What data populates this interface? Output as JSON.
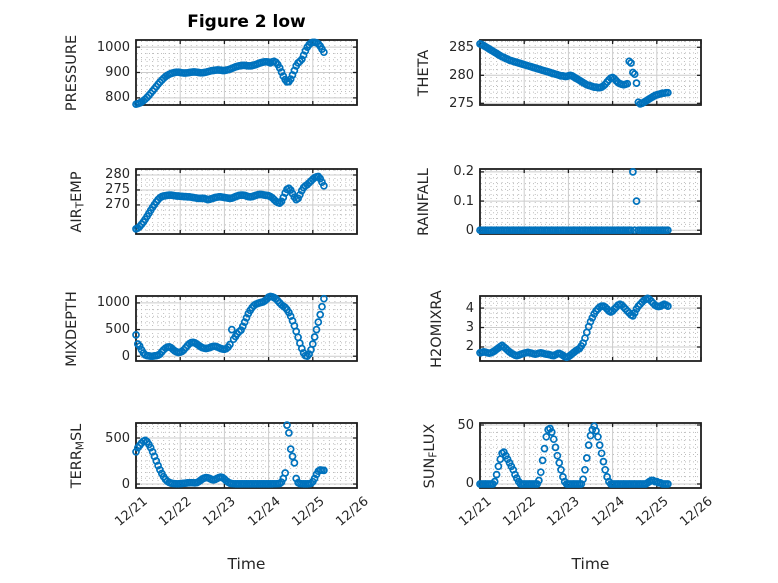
{
  "figure": {
    "title": "Figure 2 low"
  },
  "colors": {
    "marker": "#0072bd",
    "axes": "#1f1f1f",
    "text": "#262626",
    "grid_major": "#cccccc",
    "grid_minor": "#bdbdbd",
    "background": "#ffffff"
  },
  "time_axis": {
    "xlabel": "Time",
    "tick_labels": [
      "12/21",
      "12/22",
      "12/23",
      "12/24",
      "12/25",
      "12/26"
    ],
    "xlim_days": [
      0,
      5
    ],
    "x_start_day": 0,
    "x_step_days": 0.0416667,
    "x_minor_divisions_per_day": 8
  },
  "chart_data": [
    {
      "id": "pressure",
      "type": "scatter",
      "row": 0,
      "col": 0,
      "ylabel": "PRESSURE",
      "ylabel_parts": [
        {
          "text": "PRESSURE",
          "sub": false
        }
      ],
      "yticks": [
        800,
        900,
        1000
      ],
      "ytick_labels": [
        "800",
        "900",
        "1000"
      ],
      "ylim": [
        772,
        1028
      ],
      "y_minor_divisions": 4,
      "values": [
        775,
        777,
        780,
        784,
        789,
        795,
        802,
        810,
        818,
        827,
        836,
        845,
        854,
        862,
        870,
        877,
        884,
        889,
        893,
        896,
        898,
        900,
        901,
        901,
        900,
        899,
        898,
        898,
        899,
        900,
        901,
        902,
        902,
        901,
        900,
        899,
        899,
        900,
        901,
        903,
        905,
        907,
        908,
        909,
        910,
        910,
        909,
        908,
        908,
        909,
        911,
        913,
        916,
        919,
        922,
        924,
        926,
        927,
        928,
        928,
        927,
        926,
        926,
        927,
        929,
        931,
        934,
        937,
        939,
        941,
        942,
        942,
        941,
        938,
        942,
        944,
        940,
        931,
        918,
        902,
        886,
        872,
        863,
        864,
        874,
        890,
        908,
        926,
        938,
        944,
        952,
        968,
        985,
        1000,
        1010,
        1016,
        1019,
        1019,
        1017,
        1013,
        1004,
        992,
        980
      ]
    },
    {
      "id": "theta",
      "type": "scatter",
      "row": 0,
      "col": 1,
      "ylabel": "THETA",
      "ylabel_parts": [
        {
          "text": "THETA",
          "sub": false
        }
      ],
      "yticks": [
        275,
        280,
        285
      ],
      "ytick_labels": [
        "275",
        "280",
        "285"
      ],
      "ylim": [
        274.7,
        286.3
      ],
      "y_minor_divisions": 5,
      "values": [
        285.6,
        285.5,
        285.3,
        285.1,
        284.9,
        284.7,
        284.5,
        284.3,
        284.1,
        283.9,
        283.7,
        283.5,
        283.3,
        283.2,
        283.0,
        282.9,
        282.7,
        282.6,
        282.5,
        282.4,
        282.3,
        282.2,
        282.1,
        282.0,
        281.9,
        281.8,
        281.7,
        281.6,
        281.5,
        281.4,
        281.3,
        281.2,
        281.1,
        281.0,
        280.9,
        280.8,
        280.7,
        280.6,
        280.5,
        280.4,
        280.3,
        280.2,
        280.1,
        280.0,
        279.9,
        279.9,
        279.8,
        279.8,
        279.9,
        280.0,
        279.9,
        279.7,
        279.5,
        279.3,
        279.1,
        278.9,
        278.7,
        278.5,
        278.3,
        278.2,
        278.1,
        278.0,
        277.9,
        277.9,
        277.8,
        277.8,
        277.9,
        278.1,
        278.4,
        278.8,
        279.2,
        279.5,
        279.6,
        279.4,
        279.0,
        278.7,
        278.5,
        278.4,
        278.3,
        278.4,
        278.5,
        282.5,
        282.2,
        280.5,
        280.2,
        278.6,
        275.2,
        274.9,
        275.0,
        275.2,
        275.4,
        275.6,
        275.8,
        276.0,
        276.2,
        276.4,
        276.5,
        276.6,
        276.7,
        276.8,
        276.8,
        276.9,
        276.9
      ]
    },
    {
      "id": "air_temp",
      "type": "scatter",
      "row": 1,
      "col": 0,
      "ylabel": "AIR_TEMP",
      "ylabel_parts": [
        {
          "text": "AIR",
          "sub": false
        },
        {
          "text": "T",
          "sub": true
        },
        {
          "text": "EMP",
          "sub": false
        }
      ],
      "yticks": [
        270,
        275,
        280
      ],
      "ytick_labels": [
        "270",
        "275",
        "280"
      ],
      "ylim": [
        260.3,
        282.0
      ],
      "y_minor_divisions": 3,
      "values": [
        262.0,
        262.3,
        262.8,
        263.5,
        264.3,
        265.2,
        266.2,
        267.2,
        268.2,
        269.2,
        270.1,
        271.0,
        271.8,
        272.4,
        272.8,
        273.0,
        273.1,
        273.2,
        273.3,
        273.3,
        273.2,
        273.1,
        273.0,
        273.0,
        272.9,
        272.9,
        272.8,
        272.8,
        272.7,
        272.7,
        272.6,
        272.5,
        272.4,
        272.3,
        272.2,
        272.2,
        272.2,
        272.2,
        272.0,
        271.8,
        271.9,
        272.1,
        272.3,
        272.5,
        272.6,
        272.7,
        272.7,
        272.6,
        272.5,
        272.4,
        272.3,
        272.2,
        272.3,
        272.5,
        272.8,
        273.0,
        273.2,
        273.3,
        273.3,
        273.2,
        273.0,
        272.8,
        272.7,
        272.8,
        273.0,
        273.2,
        273.4,
        273.5,
        273.5,
        273.4,
        273.3,
        273.2,
        273.1,
        272.8,
        272.4,
        271.8,
        271.2,
        270.8,
        270.6,
        271.2,
        272.5,
        274.0,
        275.2,
        275.6,
        275.0,
        273.8,
        272.6,
        271.8,
        272.2,
        273.4,
        274.8,
        275.8,
        276.4,
        276.8,
        277.4,
        278.0,
        278.6,
        279.1,
        279.4,
        279.5,
        278.8,
        277.6,
        276.4
      ]
    },
    {
      "id": "rainfall",
      "type": "scatter",
      "row": 1,
      "col": 1,
      "ylabel": "RAINFALL",
      "ylabel_parts": [
        {
          "text": "RAINFALL",
          "sub": false
        }
      ],
      "yticks": [
        0,
        0.1,
        0.2
      ],
      "ytick_labels": [
        "0",
        "0.1",
        "0.2"
      ],
      "ylim": [
        -0.013,
        0.21
      ],
      "y_minor_divisions": 5,
      "values": [
        0,
        0,
        0,
        0,
        0,
        0,
        0,
        0,
        0,
        0,
        0,
        0,
        0,
        0,
        0,
        0,
        0,
        0,
        0,
        0,
        0,
        0,
        0,
        0,
        0,
        0,
        0,
        0,
        0,
        0,
        0,
        0,
        0,
        0,
        0,
        0,
        0,
        0,
        0,
        0,
        0,
        0,
        0,
        0,
        0,
        0,
        0,
        0,
        0,
        0,
        0,
        0,
        0,
        0,
        0,
        0,
        0,
        0,
        0,
        0,
        0,
        0,
        0,
        0,
        0,
        0,
        0,
        0,
        0,
        0,
        0,
        0,
        0,
        0,
        0,
        0,
        0,
        0,
        0,
        0,
        0,
        0,
        0,
        0.2,
        0,
        0.1,
        0,
        0,
        0,
        0,
        0,
        0,
        0,
        0,
        0,
        0,
        0,
        0,
        0,
        0,
        0,
        0,
        0
      ]
    },
    {
      "id": "mixdepth",
      "type": "scatter",
      "row": 2,
      "col": 0,
      "ylabel": "MIXDEPTH",
      "ylabel_parts": [
        {
          "text": "MIXDEPTH",
          "sub": false
        }
      ],
      "yticks": [
        0,
        500,
        1000
      ],
      "ytick_labels": [
        "0",
        "500",
        "1000"
      ],
      "ylim": [
        -90,
        1130
      ],
      "y_minor_divisions": 4,
      "values": [
        400,
        230,
        190,
        120,
        60,
        25,
        10,
        5,
        0,
        0,
        5,
        10,
        20,
        40,
        80,
        120,
        150,
        170,
        175,
        160,
        130,
        100,
        80,
        70,
        75,
        90,
        120,
        160,
        200,
        235,
        255,
        260,
        250,
        230,
        205,
        180,
        160,
        150,
        145,
        150,
        160,
        175,
        185,
        185,
        175,
        160,
        145,
        135,
        130,
        140,
        170,
        220,
        500,
        320,
        370,
        420,
        460,
        490,
        560,
        640,
        720,
        800,
        860,
        910,
        950,
        975,
        990,
        1000,
        1010,
        1020,
        1040,
        1070,
        1110,
        1120,
        1115,
        1100,
        1075,
        1040,
        1000,
        965,
        940,
        915,
        875,
        820,
        750,
        665,
        570,
        465,
        355,
        245,
        145,
        60,
        10,
        0,
        40,
        120,
        230,
        360,
        500,
        640,
        780,
        930,
        1080
      ]
    },
    {
      "id": "h2omixra",
      "type": "scatter",
      "row": 2,
      "col": 1,
      "ylabel": "H2OMIXRA",
      "ylabel_parts": [
        {
          "text": "H2OMIXRA",
          "sub": false
        }
      ],
      "yticks": [
        2,
        3,
        4
      ],
      "ytick_labels": [
        "2",
        "3",
        "4"
      ],
      "ylim": [
        1.28,
        4.62
      ],
      "y_minor_divisions": 4,
      "values": [
        1.7,
        1.72,
        1.75,
        1.73,
        1.7,
        1.68,
        1.7,
        1.75,
        1.8,
        1.88,
        1.95,
        2.02,
        2.08,
        2.0,
        1.92,
        1.83,
        1.75,
        1.68,
        1.63,
        1.58,
        1.55,
        1.58,
        1.62,
        1.65,
        1.68,
        1.7,
        1.72,
        1.7,
        1.68,
        1.65,
        1.63,
        1.65,
        1.68,
        1.7,
        1.68,
        1.65,
        1.63,
        1.62,
        1.6,
        1.57,
        1.55,
        1.6,
        1.65,
        1.67,
        1.63,
        1.57,
        1.5,
        1.47,
        1.5,
        1.57,
        1.65,
        1.72,
        1.8,
        1.86,
        1.92,
        2.05,
        2.2,
        2.45,
        2.75,
        3.05,
        3.3,
        3.5,
        3.7,
        3.85,
        3.95,
        4.05,
        4.1,
        4.1,
        4.05,
        3.95,
        3.85,
        3.8,
        3.85,
        3.95,
        4.05,
        4.15,
        4.2,
        4.15,
        4.05,
        3.95,
        3.85,
        3.75,
        3.65,
        3.6,
        3.75,
        3.95,
        4.1,
        4.2,
        4.3,
        4.4,
        4.45,
        4.5,
        4.45,
        4.35,
        4.25,
        4.15,
        4.1,
        4.08,
        4.1,
        4.15,
        4.2,
        4.15,
        4.1
      ]
    },
    {
      "id": "terr_msl",
      "type": "scatter",
      "row": 3,
      "col": 0,
      "ylabel": "TERR_MSL",
      "ylabel_parts": [
        {
          "text": "TERR",
          "sub": false
        },
        {
          "text": "M",
          "sub": true
        },
        {
          "text": "SL",
          "sub": false
        }
      ],
      "yticks": [
        0,
        500
      ],
      "ytick_labels": [
        "0",
        "500"
      ],
      "ylim": [
        -43,
        663
      ],
      "y_minor_divisions": 8,
      "values": [
        350,
        395,
        420,
        445,
        465,
        475,
        460,
        430,
        395,
        350,
        300,
        250,
        200,
        155,
        115,
        80,
        50,
        30,
        18,
        10,
        6,
        4,
        3,
        3,
        4,
        6,
        8,
        10,
        12,
        14,
        15,
        14,
        12,
        15,
        25,
        40,
        55,
        65,
        70,
        68,
        60,
        50,
        45,
        50,
        60,
        70,
        75,
        70,
        55,
        35,
        20,
        10,
        5,
        3,
        2,
        2,
        2,
        2,
        2,
        2,
        2,
        2,
        2,
        2,
        2,
        2,
        2,
        2,
        2,
        2,
        2,
        2,
        2,
        2,
        2,
        3,
        3,
        4,
        6,
        20,
        60,
        120,
        640,
        555,
        380,
        300,
        230,
        60,
        15,
        5,
        3,
        2,
        2,
        2,
        3,
        8,
        25,
        60,
        105,
        140,
        152,
        150,
        148
      ]
    },
    {
      "id": "sun_flux",
      "type": "scatter",
      "row": 3,
      "col": 1,
      "ylabel": "SUN_FLUX",
      "ylabel_parts": [
        {
          "text": "SUN",
          "sub": false
        },
        {
          "text": "F",
          "sub": true
        },
        {
          "text": "LUX",
          "sub": false
        }
      ],
      "yticks": [
        0,
        50
      ],
      "ytick_labels": [
        "0",
        "50"
      ],
      "ylim": [
        -3.4,
        51.7
      ],
      "y_minor_divisions": 8,
      "values": [
        0,
        0,
        0,
        0,
        0,
        0,
        0,
        0,
        2,
        8,
        15,
        21,
        26,
        27,
        24,
        21,
        18,
        15,
        12,
        8,
        5,
        2,
        0,
        0,
        0,
        0,
        0,
        0,
        0,
        0,
        0,
        0,
        3,
        10,
        20,
        30,
        40,
        46,
        47,
        44,
        38,
        31,
        24,
        18,
        12,
        6,
        2,
        0,
        0,
        0,
        0,
        0,
        0,
        0,
        0,
        0,
        4,
        12,
        22,
        33,
        41,
        46,
        49,
        45,
        40,
        33,
        26,
        19,
        12,
        6,
        2,
        0,
        0,
        0,
        0,
        0,
        0,
        0,
        0,
        0,
        0,
        0,
        0,
        0,
        0,
        0,
        0,
        0,
        0,
        0,
        0,
        1,
        2,
        3,
        3,
        2,
        2,
        1,
        1,
        0,
        0,
        0,
        0
      ]
    }
  ]
}
